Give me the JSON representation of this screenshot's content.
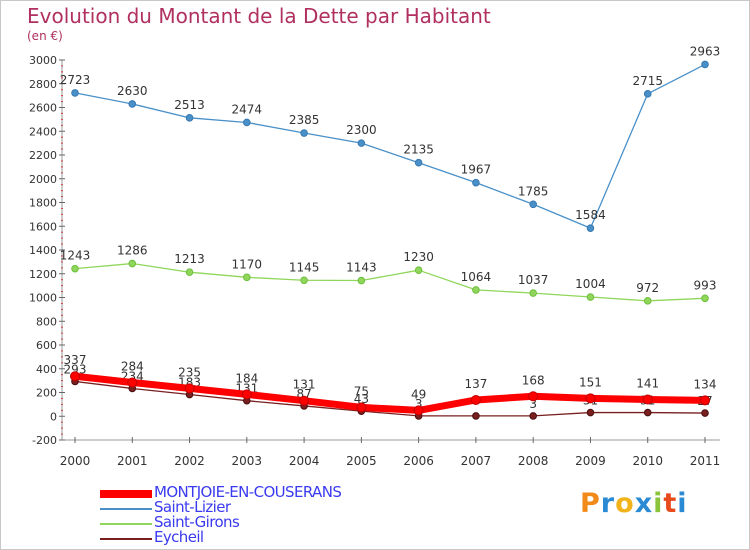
{
  "header": {
    "title": "Evolution du Montant de la Dette par Habitant",
    "subtitle": "(en €)"
  },
  "logo": {
    "letters": [
      "P",
      "r",
      "o",
      "x",
      "i",
      "t",
      "i"
    ],
    "colors": [
      "#f28a1a",
      "#2a8ad4",
      "#f2b21a",
      "#2a8ad4",
      "#8ac43a",
      "#e84a1a",
      "#2a8ad4"
    ]
  },
  "chart_data": {
    "type": "line",
    "title": "Evolution du Montant de la Dette par Habitant",
    "subtitle": "(en €)",
    "xlabel": "",
    "ylabel": "",
    "ylim": [
      -200,
      3000
    ],
    "yticks": [
      -200,
      0,
      200,
      400,
      600,
      800,
      1000,
      1200,
      1400,
      1600,
      1800,
      2000,
      2200,
      2400,
      2600,
      2800,
      3000
    ],
    "categories": [
      "2000",
      "2001",
      "2002",
      "2003",
      "2004",
      "2005",
      "2006",
      "2007",
      "2008",
      "2009",
      "2010",
      "2011"
    ],
    "grid": false,
    "legend_position": "bottom-left",
    "series": [
      {
        "name": "MONTJOIE-EN-COUSERANS",
        "color": "#ff0000",
        "values": [
          337,
          284,
          235,
          184,
          131,
          75,
          49,
          137,
          168,
          151,
          141,
          134
        ],
        "labels": [
          "337",
          "284",
          "235",
          "184",
          "131",
          "75",
          "49",
          "137",
          "168",
          "151",
          "141",
          "134"
        ]
      },
      {
        "name": "Saint-Lizier",
        "color": "#4a90c8",
        "values": [
          2723,
          2630,
          2513,
          2474,
          2385,
          2300,
          2135,
          1967,
          1785,
          1584,
          2715,
          2963
        ],
        "labels": [
          "2723",
          "2630",
          "2513",
          "2474",
          "2385",
          "2300",
          "2135",
          "1967",
          "1785",
          "1584",
          "2715",
          "2963"
        ]
      },
      {
        "name": "Saint-Girons",
        "color": "#8fd65a",
        "values": [
          1243,
          1286,
          1213,
          1170,
          1145,
          1143,
          1230,
          1064,
          1037,
          1004,
          972,
          993
        ],
        "labels": [
          "1243",
          "1286",
          "1213",
          "1170",
          "1145",
          "1143",
          "1230",
          "1064",
          "1037",
          "1004",
          "972",
          "993"
        ]
      },
      {
        "name": "Eycheil",
        "color": "#7a1f1f",
        "values": [
          293,
          234,
          183,
          131,
          87,
          43,
          3,
          3,
          3,
          31,
          31,
          27
        ],
        "labels": [
          "293",
          "234",
          "183",
          "131",
          "87",
          "43",
          "3",
          "",
          "3",
          "31",
          "31",
          "27"
        ]
      }
    ]
  }
}
